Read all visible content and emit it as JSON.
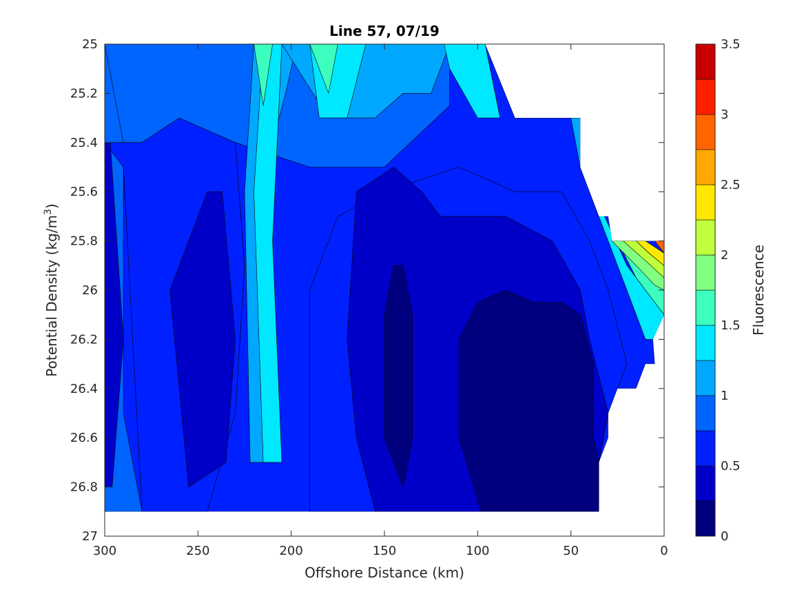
{
  "chart_data": {
    "type": "filled-contour",
    "title": "Line 57, 07/19",
    "xlabel": "Offshore Distance (km)",
    "ylabel_main": "Potential Density (kg/m",
    "ylabel_sup": "3",
    "ylabel_close": ")",
    "xlim": [
      300,
      0
    ],
    "x_reversed": true,
    "ylim": [
      25,
      27
    ],
    "y_reversed": true,
    "xticks": [
      300,
      250,
      200,
      150,
      100,
      50,
      0
    ],
    "xtick_labels": [
      "300",
      "250",
      "200",
      "150",
      "100",
      "50",
      "0"
    ],
    "yticks": [
      25,
      25.2,
      25.4,
      25.6,
      25.8,
      26,
      26.2,
      26.4,
      26.6,
      26.8,
      27
    ],
    "ytick_labels": [
      "25",
      "25.2",
      "25.4",
      "25.6",
      "25.8",
      "26",
      "26.2",
      "26.4",
      "26.6",
      "26.8",
      "27"
    ],
    "colorbar": {
      "label": "Fluorescence",
      "clim": [
        0,
        3.5
      ],
      "levels": [
        0,
        0.25,
        0.5,
        0.75,
        1,
        1.25,
        1.5,
        1.75,
        2,
        2.25,
        2.5,
        2.75,
        3,
        3.25,
        3.5
      ],
      "ticks": [
        0,
        0.5,
        1,
        1.5,
        2,
        2.5,
        3,
        3.5
      ],
      "tick_labels": [
        "0",
        "0.5",
        "1",
        "1.5",
        "2",
        "2.5",
        "3",
        "3.5"
      ],
      "colors": [
        "#00007f",
        "#0000c8",
        "#0020ff",
        "#0064ff",
        "#00a8ff",
        "#00e8ff",
        "#3cffbf",
        "#80ff80",
        "#bfff3c",
        "#ffe800",
        "#ffa800",
        "#ff6400",
        "#ff2000",
        "#c80000"
      ]
    },
    "data_region_boundary": [
      [
        300,
        25.0
      ],
      [
        96,
        25.0
      ],
      [
        80,
        25.3
      ],
      [
        45,
        25.3
      ],
      [
        45,
        25.5
      ],
      [
        35,
        25.7
      ],
      [
        30,
        25.7
      ],
      [
        28,
        25.8
      ],
      [
        10,
        25.8
      ],
      [
        0,
        25.8
      ],
      [
        0,
        26.1
      ],
      [
        6,
        26.2
      ],
      [
        5,
        26.3
      ],
      [
        10,
        26.3
      ],
      [
        15,
        26.4
      ],
      [
        25,
        26.4
      ],
      [
        30,
        26.5
      ],
      [
        30,
        26.6
      ],
      [
        35,
        26.7
      ],
      [
        35,
        26.9
      ],
      [
        300,
        26.9
      ]
    ],
    "contour_regions": [
      {
        "level": 0.75,
        "points": [
          [
            300,
            25.0
          ],
          [
            115,
            25.0
          ],
          [
            115,
            25.25
          ],
          [
            150,
            25.5
          ],
          [
            190,
            25.5
          ],
          [
            230,
            25.4
          ],
          [
            280,
            25.4
          ],
          [
            300,
            25.4
          ]
        ]
      },
      {
        "level": 0.75,
        "points": [
          [
            300,
            25.0
          ],
          [
            300,
            26.9
          ],
          [
            280,
            26.9
          ],
          [
            290,
            26.5
          ],
          [
            290,
            25.4
          ]
        ]
      },
      {
        "level": 0.5,
        "points": [
          [
            300,
            25.4
          ],
          [
            290,
            25.5
          ],
          [
            280,
            26.9
          ],
          [
            245,
            26.9
          ],
          [
            230,
            26.5
          ],
          [
            225,
            25.9
          ],
          [
            230,
            25.4
          ],
          [
            260,
            25.3
          ],
          [
            280,
            25.4
          ]
        ]
      },
      {
        "level": 0.5,
        "points": [
          [
            110,
            25.5
          ],
          [
            150,
            25.6
          ],
          [
            175,
            25.7
          ],
          [
            190,
            26.0
          ],
          [
            190,
            26.9
          ],
          [
            150,
            26.9
          ],
          [
            130,
            26.9
          ],
          [
            100,
            26.9
          ],
          [
            60,
            26.9
          ],
          [
            35,
            26.9
          ],
          [
            35,
            26.7
          ],
          [
            30,
            26.5
          ],
          [
            20,
            26.3
          ],
          [
            30,
            26.0
          ],
          [
            40,
            25.8
          ],
          [
            55,
            25.6
          ],
          [
            80,
            25.6
          ]
        ]
      },
      {
        "level": 0.25,
        "points": [
          [
            297,
            25.4
          ],
          [
            290,
            26.2
          ],
          [
            296,
            26.8
          ],
          [
            300,
            26.8
          ],
          [
            300,
            25.4
          ]
        ]
      },
      {
        "level": 0.25,
        "points": [
          [
            245,
            25.6
          ],
          [
            265,
            26.0
          ],
          [
            255,
            26.8
          ],
          [
            235,
            26.7
          ],
          [
            230,
            26.2
          ],
          [
            237,
            25.6
          ]
        ]
      },
      {
        "level": 0.25,
        "points": [
          [
            165,
            25.6
          ],
          [
            145,
            25.5
          ],
          [
            130,
            25.6
          ],
          [
            120,
            25.7
          ],
          [
            105,
            25.7
          ],
          [
            85,
            25.7
          ],
          [
            60,
            25.8
          ],
          [
            45,
            26.0
          ],
          [
            40,
            26.2
          ],
          [
            30,
            26.5
          ],
          [
            35,
            26.7
          ],
          [
            35,
            26.9
          ],
          [
            155,
            26.9
          ],
          [
            165,
            26.6
          ],
          [
            170,
            26.2
          ]
        ]
      },
      {
        "level": 0,
        "points": [
          [
            145,
            25.9
          ],
          [
            150,
            26.1
          ],
          [
            150,
            26.6
          ],
          [
            140,
            26.8
          ],
          [
            135,
            26.6
          ],
          [
            135,
            26.1
          ],
          [
            140,
            25.9
          ]
        ]
      },
      {
        "level": 0,
        "points": [
          [
            100,
            26.05
          ],
          [
            85,
            26.0
          ],
          [
            70,
            26.05
          ],
          [
            55,
            26.05
          ],
          [
            45,
            26.1
          ],
          [
            38,
            26.3
          ],
          [
            38,
            26.6
          ],
          [
            35,
            26.7
          ],
          [
            35,
            26.9
          ],
          [
            98,
            26.9
          ],
          [
            110,
            26.6
          ],
          [
            110,
            26.2
          ]
        ]
      },
      {
        "level": 1.0,
        "points": [
          [
            220,
            25.0
          ],
          [
            225,
            25.6
          ],
          [
            222,
            26.7
          ],
          [
            207,
            26.7
          ],
          [
            210,
            26.2
          ],
          [
            210,
            25.4
          ],
          [
            203,
            25.2
          ],
          [
            197,
            25.0
          ]
        ]
      },
      {
        "level": 1.0,
        "points": [
          [
            205,
            25.0
          ],
          [
            180,
            25.3
          ],
          [
            155,
            25.3
          ],
          [
            140,
            25.2
          ],
          [
            125,
            25.2
          ],
          [
            115,
            25.0
          ]
        ]
      },
      {
        "level": 1.0,
        "points": [
          [
            96,
            25.0
          ],
          [
            80,
            25.3
          ],
          [
            45,
            25.3
          ],
          [
            40,
            25.6
          ],
          [
            35,
            25.7
          ],
          [
            45,
            25.5
          ],
          [
            50,
            25.3
          ]
        ]
      },
      {
        "level": 1.25,
        "points": [
          [
            215,
            25.0
          ],
          [
            220,
            25.6
          ],
          [
            215,
            26.7
          ],
          [
            205,
            26.7
          ],
          [
            210,
            25.8
          ],
          [
            205,
            25.0
          ]
        ]
      },
      {
        "level": 1.25,
        "points": [
          [
            190,
            25.0
          ],
          [
            185,
            25.3
          ],
          [
            170,
            25.3
          ],
          [
            160,
            25.0
          ]
        ]
      },
      {
        "level": 1.25,
        "points": [
          [
            96,
            25.0
          ],
          [
            88,
            25.3
          ],
          [
            100,
            25.3
          ],
          [
            115,
            25.1
          ],
          [
            118,
            25.0
          ]
        ]
      },
      {
        "level": 1.25,
        "points": [
          [
            40,
            25.6
          ],
          [
            30,
            25.8
          ],
          [
            20,
            26.0
          ],
          [
            10,
            26.2
          ],
          [
            0,
            26.2
          ],
          [
            0,
            26.1
          ],
          [
            20,
            25.9
          ],
          [
            32,
            25.7
          ]
        ]
      },
      {
        "level": 1.5,
        "points": [
          [
            220,
            25.0
          ],
          [
            215,
            25.25
          ],
          [
            212,
            25.1
          ],
          [
            210,
            25.0
          ]
        ]
      },
      {
        "level": 1.5,
        "points": [
          [
            190,
            25.0
          ],
          [
            180,
            25.2
          ],
          [
            175,
            25.0
          ]
        ]
      },
      {
        "level": 1.5,
        "points": [
          [
            30,
            25.7
          ],
          [
            25,
            25.8
          ],
          [
            15,
            25.95
          ],
          [
            5,
            26.05
          ],
          [
            0,
            26.1
          ],
          [
            0,
            26.0
          ],
          [
            15,
            25.85
          ],
          [
            28,
            25.75
          ]
        ]
      },
      {
        "level": 1.75,
        "points": [
          [
            28,
            25.8
          ],
          [
            15,
            25.9
          ],
          [
            5,
            25.98
          ],
          [
            0,
            26.0
          ],
          [
            0,
            25.95
          ],
          [
            10,
            25.87
          ],
          [
            22,
            25.8
          ]
        ]
      },
      {
        "level": 2.0,
        "points": [
          [
            22,
            25.8
          ],
          [
            10,
            25.88
          ],
          [
            0,
            25.95
          ],
          [
            0,
            25.9
          ],
          [
            8,
            25.85
          ],
          [
            15,
            25.8
          ]
        ]
      },
      {
        "level": 2.25,
        "points": [
          [
            15,
            25.8
          ],
          [
            8,
            25.85
          ],
          [
            0,
            25.9
          ],
          [
            0,
            25.85
          ],
          [
            10,
            25.8
          ]
        ]
      },
      {
        "level": 2.75,
        "points": [
          [
            5,
            25.8
          ],
          [
            2,
            25.83
          ],
          [
            0,
            25.85
          ],
          [
            0,
            25.8
          ]
        ]
      }
    ]
  }
}
